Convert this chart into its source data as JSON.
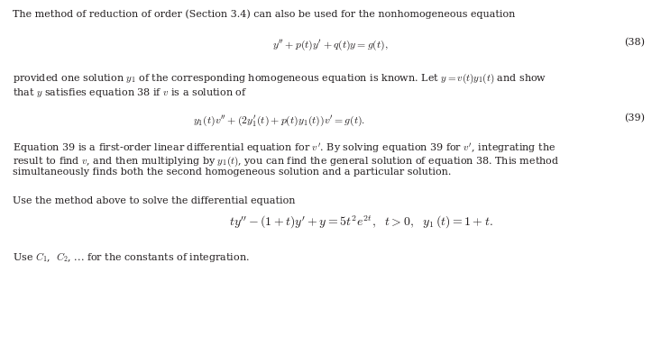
{
  "background_color": "#ffffff",
  "fig_width": 7.33,
  "fig_height": 3.93,
  "dpi": 100,
  "text_color": "#231f20",
  "font_size_body": 8.0,
  "font_size_math": 8.5,
  "font_size_math_large": 10.0,
  "paragraph1": "The method of reduction of order (Section 3.4) can also be used for the nonhomogeneous equation",
  "eq38_label": "(38)",
  "eq38": "$y'' +p(t)y' + q(t)y = g(t),$",
  "paragraph2a": "provided one solution $y_1$ of the corresponding homogeneous equation is known. Let $y = v(t)y_1(t)$ and show",
  "paragraph2b": "that $y$ satisfies equation 38 if $v$ is a solution of",
  "eq39": "$y_1(t)v'' + (2y_1'(t) + p(t)y_1(t))v' = g(t).$",
  "eq39_label": "(39)",
  "paragraph3a": "Equation 39 is a first-order linear differential equation for $v'$. By solving equation 39 for $v'$, integrating the",
  "paragraph3b": "result to find $v$, and then multiplying by $y_1(t)$, you can find the general solution of equation 38. This method",
  "paragraph3c": "simultaneously finds both the second homogeneous solution and a particular solution.",
  "paragraph4": "Use the method above to solve the differential equation",
  "eq_final": "$ty'' - (1+t)y' + y = 5t^2e^{2t},\\ \\ t > 0,\\ \\ y_1\\,(t) = 1+t.$",
  "paragraph5a": "Use $C_1$,  $C_2$, ... for the constants of integration."
}
